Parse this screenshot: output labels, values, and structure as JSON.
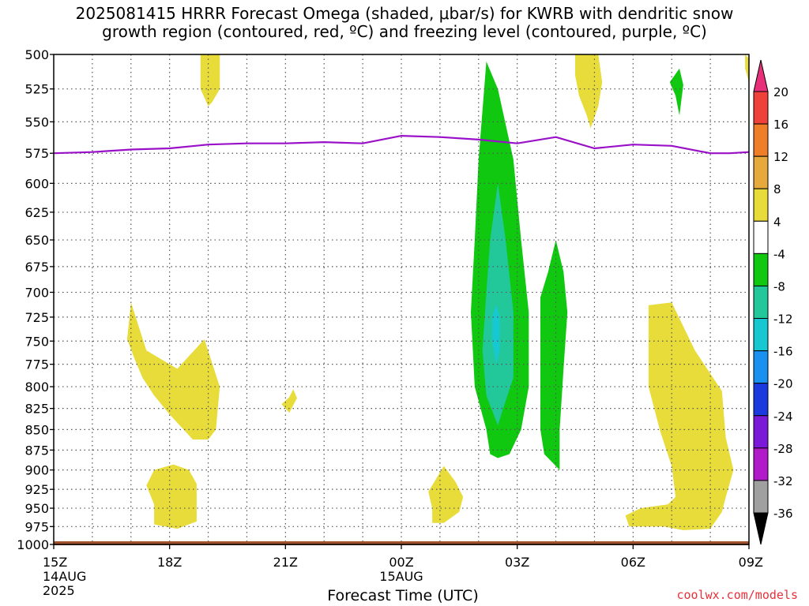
{
  "title_line1": "2025081415 HRRR Forecast Omega (shaded, μbar/s) for KWRB with dendritic snow",
  "title_line2": "growth region (contoured, red, ºC) and freezing level (contoured, purple, ºC)",
  "credit": "coolwx.com/models",
  "chart_data": {
    "type": "heatmap",
    "title": "2025081415 HRRR Forecast Omega (shaded, μbar/s) for KWRB with dendritic snow growth region (contoured, red, ºC) and freezing level (contoured, purple, ºC)",
    "xlabel": "Forecast Time (UTC)",
    "ylabel": "",
    "x_unit": "hours since 15Z 14AUG 2025",
    "xlim": [
      0,
      18
    ],
    "ylim": [
      1000,
      500
    ],
    "y_scale": "log-pressure",
    "grid": true,
    "x_ticks": [
      {
        "x": 0,
        "label": "15Z",
        "sub": [
          "14AUG",
          "2025"
        ]
      },
      {
        "x": 3,
        "label": "18Z",
        "sub": []
      },
      {
        "x": 6,
        "label": "21Z",
        "sub": []
      },
      {
        "x": 9,
        "label": "00Z",
        "sub": [
          "15AUG"
        ]
      },
      {
        "x": 12,
        "label": "03Z",
        "sub": []
      },
      {
        "x": 15,
        "label": "06Z",
        "sub": []
      },
      {
        "x": 18,
        "label": "09Z",
        "sub": []
      }
    ],
    "y_ticks": [
      500,
      525,
      550,
      575,
      600,
      625,
      650,
      675,
      700,
      725,
      750,
      775,
      800,
      825,
      850,
      875,
      900,
      925,
      950,
      975,
      1000
    ],
    "colorbar": {
      "labels": [
        "20",
        "16",
        "12",
        "8",
        "4",
        "-4",
        "-8",
        "-12",
        "-16",
        "-20",
        "-24",
        "-28",
        "-32",
        "-36"
      ],
      "bins": [
        {
          "color": "#e8307a",
          "range": "> 20"
        },
        {
          "color": "#f0403a",
          "range": "16 to 20"
        },
        {
          "color": "#f07d28",
          "range": "12 to 16"
        },
        {
          "color": "#e8a93c",
          "range": "8 to 12"
        },
        {
          "color": "#e8dc3a",
          "range": "4 to 8"
        },
        {
          "color": "#ffffff",
          "range": "-4 to 4"
        },
        {
          "color": "#10c810",
          "range": "-8 to -4"
        },
        {
          "color": "#22c89a",
          "range": "-12 to -8"
        },
        {
          "color": "#18c8d0",
          "range": "-16 to -12"
        },
        {
          "color": "#1a90f0",
          "range": "-20 to -16"
        },
        {
          "color": "#1a3ae0",
          "range": "-24 to -20"
        },
        {
          "color": "#7a1ad8",
          "range": "-28 to -24"
        },
        {
          "color": "#b01ac8",
          "range": "-32 to -28"
        },
        {
          "color": "#a0a0a0",
          "range": "-36 to -32"
        },
        {
          "color": "#000000",
          "range": "< -36"
        }
      ]
    },
    "series": [
      {
        "name": "freezing level",
        "color": "#9a10c8",
        "x": [
          0,
          1,
          2,
          3,
          4,
          5,
          6,
          7,
          8,
          9,
          10,
          11,
          12,
          13,
          14,
          15,
          16,
          17,
          17.5,
          18
        ],
        "y": [
          575,
          574,
          572,
          571,
          568,
          567,
          567,
          566,
          567,
          561,
          562,
          564,
          567,
          562,
          571,
          568,
          569,
          575,
          575,
          574
        ]
      }
    ],
    "omega_regions": [
      {
        "color": "#e8dc3a",
        "points": [
          [
            3.8,
            500
          ],
          [
            4.3,
            500
          ],
          [
            4.3,
            525
          ],
          [
            4.1,
            535
          ],
          [
            4.0,
            538
          ],
          [
            3.8,
            525
          ]
        ]
      },
      {
        "color": "#e8dc3a",
        "points": [
          [
            2.0,
            710
          ],
          [
            2.4,
            760
          ],
          [
            3.2,
            780
          ],
          [
            3.9,
            748
          ],
          [
            4.3,
            800
          ],
          [
            4.2,
            850
          ],
          [
            4.0,
            862
          ],
          [
            3.6,
            862
          ],
          [
            3.0,
            832
          ],
          [
            2.6,
            810
          ],
          [
            2.3,
            790
          ],
          [
            2.1,
            770
          ],
          [
            1.9,
            748
          ]
        ]
      },
      {
        "color": "#e8dc3a",
        "points": [
          [
            6.1,
            812
          ],
          [
            6.2,
            803
          ],
          [
            6.3,
            813
          ],
          [
            6.1,
            830
          ],
          [
            5.9,
            820
          ]
        ]
      },
      {
        "color": "#e8dc3a",
        "points": [
          [
            2.6,
            900
          ],
          [
            3.1,
            893
          ],
          [
            3.5,
            900
          ],
          [
            3.7,
            918
          ],
          [
            3.7,
            968
          ],
          [
            3.2,
            978
          ],
          [
            2.6,
            972
          ],
          [
            2.6,
            945
          ],
          [
            2.4,
            920
          ]
        ]
      },
      {
        "color": "#e8dc3a",
        "points": [
          [
            10.1,
            895
          ],
          [
            10.4,
            915
          ],
          [
            10.6,
            935
          ],
          [
            10.5,
            955
          ],
          [
            10.1,
            970
          ],
          [
            9.8,
            970
          ],
          [
            9.8,
            950
          ],
          [
            9.7,
            928
          ]
        ]
      },
      {
        "color": "#e8dc3a",
        "points": [
          [
            13.5,
            500
          ],
          [
            14.1,
            500
          ],
          [
            14.2,
            520
          ],
          [
            14.1,
            538
          ],
          [
            13.9,
            555
          ],
          [
            13.8,
            545
          ],
          [
            13.6,
            530
          ],
          [
            13.5,
            515
          ]
        ]
      },
      {
        "color": "#e8dc3a",
        "points": [
          [
            17.9,
            500
          ],
          [
            18.0,
            503
          ],
          [
            18.0,
            520
          ],
          [
            17.9,
            510
          ]
        ]
      },
      {
        "color": "#e8dc3a",
        "points": [
          [
            15.4,
            713
          ],
          [
            16.0,
            710
          ],
          [
            16.6,
            760
          ],
          [
            17.3,
            805
          ],
          [
            17.4,
            860
          ],
          [
            17.6,
            900
          ],
          [
            17.4,
            935
          ],
          [
            17.3,
            955
          ],
          [
            17.0,
            978
          ],
          [
            16.3,
            980
          ],
          [
            15.8,
            975
          ],
          [
            14.9,
            975
          ],
          [
            14.8,
            960
          ],
          [
            15.2,
            950
          ],
          [
            15.9,
            945
          ],
          [
            16.1,
            935
          ],
          [
            16.0,
            895
          ],
          [
            15.7,
            852
          ],
          [
            15.4,
            800
          ],
          [
            15.4,
            760
          ]
        ]
      },
      {
        "color": "#10c810",
        "points": [
          [
            11.2,
            505
          ],
          [
            11.5,
            525
          ],
          [
            11.9,
            580
          ],
          [
            12.1,
            650
          ],
          [
            12.3,
            720
          ],
          [
            12.3,
            800
          ],
          [
            12.1,
            850
          ],
          [
            11.8,
            880
          ],
          [
            11.5,
            885
          ],
          [
            11.3,
            880
          ],
          [
            11.2,
            850
          ],
          [
            10.9,
            800
          ],
          [
            10.8,
            720
          ],
          [
            10.9,
            650
          ],
          [
            11.0,
            580
          ]
        ]
      },
      {
        "color": "#10c810",
        "points": [
          [
            13.0,
            650
          ],
          [
            13.2,
            680
          ],
          [
            13.3,
            720
          ],
          [
            13.2,
            780
          ],
          [
            13.1,
            850
          ],
          [
            13.1,
            900
          ],
          [
            12.7,
            880
          ],
          [
            12.6,
            850
          ],
          [
            12.6,
            780
          ],
          [
            12.6,
            705
          ],
          [
            12.8,
            680
          ]
        ]
      },
      {
        "color": "#10c810",
        "points": [
          [
            16.2,
            510
          ],
          [
            16.3,
            522
          ],
          [
            16.2,
            545
          ],
          [
            16.1,
            530
          ],
          [
            15.95,
            520
          ]
        ]
      },
      {
        "color": "#22c89a",
        "points": [
          [
            11.5,
            600
          ],
          [
            11.7,
            650
          ],
          [
            11.9,
            720
          ],
          [
            11.9,
            790
          ],
          [
            11.6,
            830
          ],
          [
            11.5,
            845
          ],
          [
            11.2,
            810
          ],
          [
            11.1,
            760
          ],
          [
            11.2,
            700
          ],
          [
            11.3,
            650
          ]
        ]
      },
      {
        "color": "#18c8d0",
        "points": [
          [
            11.45,
            712
          ],
          [
            11.55,
            725
          ],
          [
            11.55,
            760
          ],
          [
            11.45,
            775
          ],
          [
            11.35,
            750
          ],
          [
            11.35,
            725
          ]
        ]
      }
    ]
  }
}
